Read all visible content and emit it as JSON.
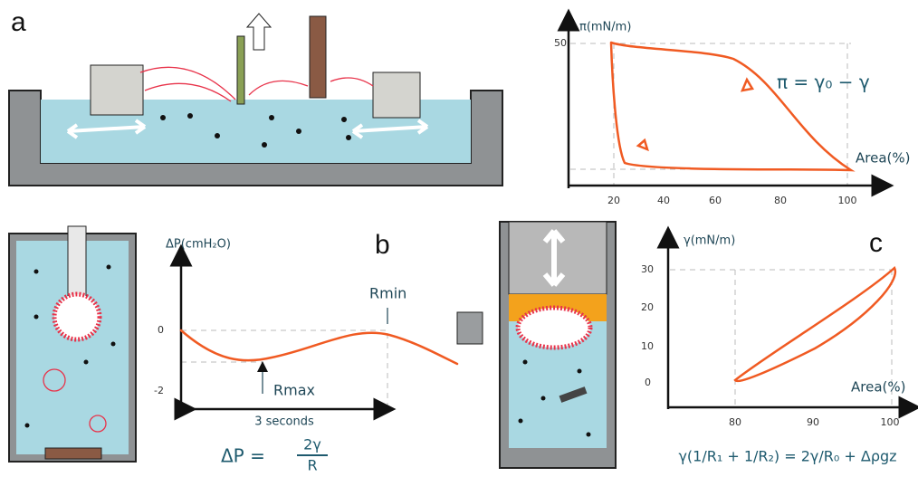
{
  "panels": [
    {
      "label": "a",
      "plot": {
        "y_label": "π(mN/m)",
        "x_label": "Area(%)",
        "yticks": [
          50
        ],
        "xticks": [
          20,
          40,
          60,
          80,
          100
        ],
        "equation": "π = γ₀ − γ"
      }
    },
    {
      "label": "b",
      "plot": {
        "y_label": "ΔP(cmH₂O)",
        "yticks": [
          0,
          -2
        ],
        "annotations": [
          "Rmin",
          "Rmax",
          "3 seconds"
        ],
        "equation": {
          "lhs": "ΔP =",
          "numerator": "2γ",
          "denominator": "R"
        }
      }
    },
    {
      "label": "c",
      "plot": {
        "y_label": "γ(mN/m)",
        "x_label": "Area(%)",
        "yticks": [
          30,
          20,
          10,
          0
        ],
        "xticks": [
          80,
          90,
          100
        ],
        "equation": "γ(1/R₁ + 1/R₂) = 2γ/R₀ + Δρgz"
      }
    }
  ]
}
